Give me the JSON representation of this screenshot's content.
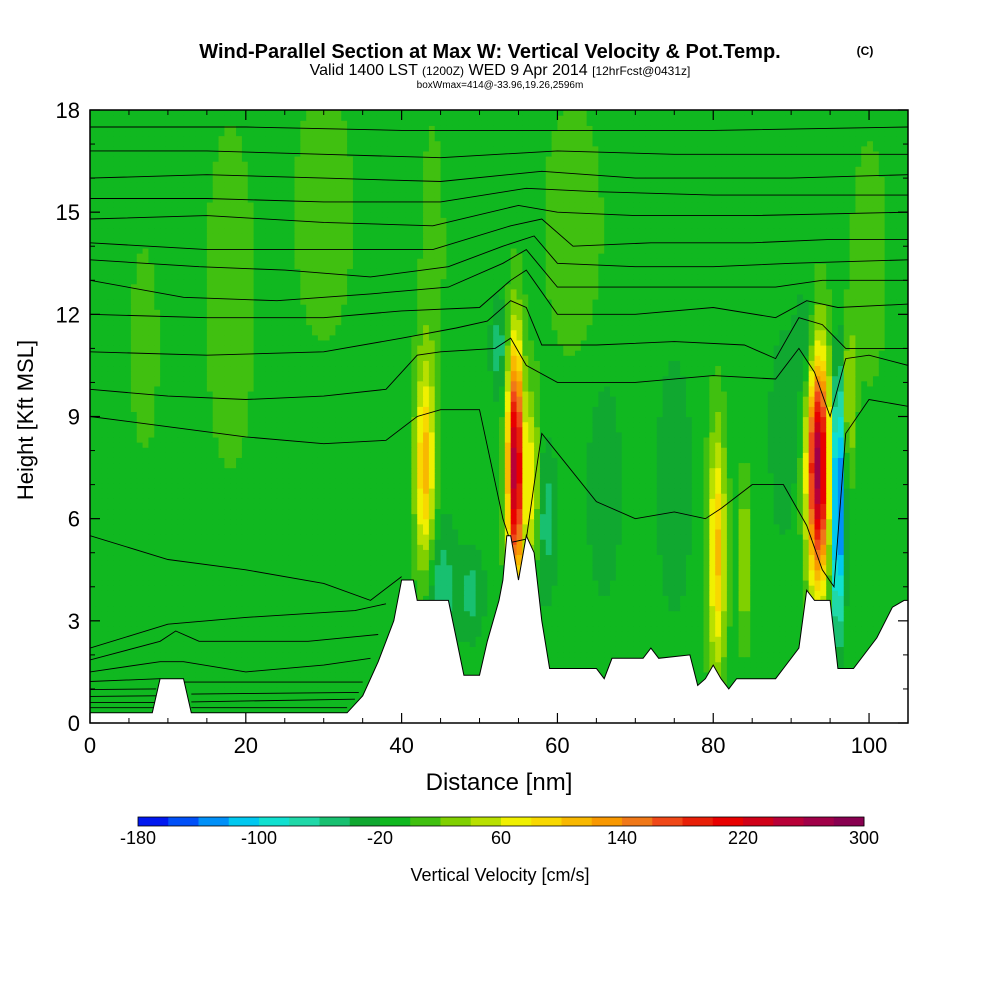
{
  "chart_data": {
    "type": "heatmap",
    "title": "Wind-Parallel Section at Max W: Vertical Velocity & Pot.Temp.",
    "title_mark": "(C)",
    "subtitle": {
      "valid": "Valid 1400 LST",
      "utc": "(1200Z)",
      "date": "WED 9 Apr 2014",
      "forecast": "[12hrFcst@0431z]"
    },
    "box_info": "boxWmax=414@-33.96,19.26,2596m",
    "xlabel": "Distance [nm]",
    "ylabel": "Height [Kft MSL]",
    "xlim": [
      0,
      105
    ],
    "ylim": [
      0,
      18
    ],
    "x_ticks": [
      0,
      20,
      40,
      60,
      80,
      100
    ],
    "y_ticks": [
      0,
      3,
      6,
      9,
      12,
      15,
      18
    ],
    "background_value": -10,
    "terrain": [
      [
        0,
        0.3
      ],
      [
        8,
        0.3
      ],
      [
        9,
        1.3
      ],
      [
        12,
        1.3
      ],
      [
        13,
        0.3
      ],
      [
        33,
        0.3
      ],
      [
        35,
        0.8
      ],
      [
        37,
        1.8
      ],
      [
        39,
        3.0
      ],
      [
        40,
        4.2
      ],
      [
        41.5,
        4.2
      ],
      [
        42,
        3.6
      ],
      [
        46,
        3.6
      ],
      [
        47,
        2.5
      ],
      [
        48,
        1.4
      ],
      [
        50,
        1.4
      ],
      [
        51,
        2.4
      ],
      [
        52.5,
        3.6
      ],
      [
        53,
        4.2
      ],
      [
        53.5,
        5.5
      ],
      [
        54,
        5.5
      ],
      [
        55,
        4.2
      ],
      [
        56,
        5.5
      ],
      [
        57,
        5.0
      ],
      [
        58,
        3.0
      ],
      [
        59,
        1.6
      ],
      [
        65,
        1.6
      ],
      [
        66,
        1.3
      ],
      [
        67,
        1.9
      ],
      [
        71,
        1.9
      ],
      [
        72,
        2.2
      ],
      [
        73,
        1.9
      ],
      [
        77,
        2.0
      ],
      [
        78,
        1.1
      ],
      [
        79,
        1.3
      ],
      [
        80,
        1.7
      ],
      [
        81,
        1.3
      ],
      [
        82,
        1.0
      ],
      [
        83,
        1.3
      ],
      [
        88,
        1.3
      ],
      [
        89,
        1.6
      ],
      [
        91,
        2.2
      ],
      [
        92,
        3.9
      ],
      [
        93,
        3.6
      ],
      [
        95,
        3.6
      ],
      [
        96,
        1.6
      ],
      [
        98,
        1.6
      ],
      [
        101,
        2.5
      ],
      [
        103,
        3.4
      ],
      [
        104.5,
        3.6
      ],
      [
        105,
        3.6
      ]
    ],
    "features": [
      {
        "x": 43.0,
        "y": 7.5,
        "sx": 0.9,
        "sy": 2.2,
        "value": 120
      },
      {
        "x": 54.6,
        "y": 7.5,
        "sx": 0.75,
        "sy": 2.5,
        "value": 270
      },
      {
        "x": 56.8,
        "y": 7.0,
        "sx": 0.6,
        "sy": 1.8,
        "value": 85
      },
      {
        "x": 80.5,
        "y": 5.0,
        "sx": 0.8,
        "sy": 2.5,
        "value": 115
      },
      {
        "x": 84.0,
        "y": 4.8,
        "sx": 0.5,
        "sy": 1.6,
        "value": 60
      },
      {
        "x": 93.5,
        "y": 7.5,
        "sx": 1.0,
        "sy": 2.4,
        "value": 280
      },
      {
        "x": 96.0,
        "y": 6.5,
        "sx": 0.55,
        "sy": 2.5,
        "value": -170
      },
      {
        "x": 52.5,
        "y": 11.0,
        "sx": 0.7,
        "sy": 1.0,
        "value": -45
      },
      {
        "x": 92.0,
        "y": 11.0,
        "sx": 1.0,
        "sy": 1.2,
        "value": -40
      },
      {
        "x": 45.0,
        "y": 4.0,
        "sx": 1.4,
        "sy": 1.4,
        "value": -45
      },
      {
        "x": 58.5,
        "y": 6.0,
        "sx": 1.0,
        "sy": 1.6,
        "value": -40
      },
      {
        "x": 49.0,
        "y": 3.8,
        "sx": 1.1,
        "sy": 0.9,
        "value": -38
      },
      {
        "x": 89.0,
        "y": 8.5,
        "sx": 1.2,
        "sy": 2.0,
        "value": -30
      },
      {
        "x": 97.5,
        "y": 9.5,
        "sx": 0.5,
        "sy": 1.5,
        "value": 60
      },
      {
        "x": 75.0,
        "y": 7.0,
        "sx": 1.5,
        "sy": 2.5,
        "value": -30
      },
      {
        "x": 66.0,
        "y": 7.0,
        "sx": 1.5,
        "sy": 2.2,
        "value": -30
      },
      {
        "x": 18.0,
        "y": 12.5,
        "sx": 2.5,
        "sy": 4.0,
        "value": 22
      },
      {
        "x": 30.0,
        "y": 15.0,
        "sx": 3.0,
        "sy": 3.0,
        "value": 22
      },
      {
        "x": 62.0,
        "y": 14.5,
        "sx": 3.0,
        "sy": 3.0,
        "value": 22
      },
      {
        "x": 100.0,
        "y": 13.5,
        "sx": 2.0,
        "sy": 3.0,
        "value": 20
      },
      {
        "x": 25.0,
        "y": 5.0,
        "sx": 3.5,
        "sy": 1.2,
        "value": 5
      },
      {
        "x": 44.0,
        "y": 14.0,
        "sx": 1.2,
        "sy": 3.0,
        "value": 20
      },
      {
        "x": 7.0,
        "y": 11.0,
        "sx": 1.5,
        "sy": 2.5,
        "value": 20
      }
    ],
    "isentropes": [
      [
        [
          0,
          0.45
        ],
        [
          8.5,
          0.45
        ]
      ],
      [
        [
          0,
          0.6
        ],
        [
          8.5,
          0.6
        ]
      ],
      [
        [
          0,
          0.78
        ],
        [
          8.5,
          0.8
        ]
      ],
      [
        [
          0,
          0.98
        ],
        [
          8.5,
          1.0
        ]
      ],
      [
        [
          0,
          1.22
        ],
        [
          9,
          1.3
        ]
      ],
      [
        [
          13,
          0.45
        ],
        [
          33,
          0.45
        ]
      ],
      [
        [
          13,
          0.62
        ],
        [
          34,
          0.7
        ]
      ],
      [
        [
          13,
          0.85
        ],
        [
          34.5,
          0.9
        ]
      ],
      [
        [
          12,
          1.2
        ],
        [
          35,
          1.2
        ]
      ],
      [
        [
          0,
          1.5
        ],
        [
          9,
          1.8
        ],
        [
          12,
          1.8
        ],
        [
          20,
          1.5
        ],
        [
          30,
          1.7
        ],
        [
          36,
          1.9
        ]
      ],
      [
        [
          0,
          1.85
        ],
        [
          9,
          2.4
        ],
        [
          11,
          2.7
        ],
        [
          14,
          2.4
        ],
        [
          28,
          2.4
        ],
        [
          37,
          2.6
        ]
      ],
      [
        [
          0,
          2.2
        ],
        [
          10,
          2.9
        ],
        [
          20,
          3.1
        ],
        [
          34,
          3.3
        ],
        [
          38,
          3.5
        ]
      ],
      [
        [
          0,
          5.5
        ],
        [
          10,
          4.8
        ],
        [
          20,
          4.5
        ],
        [
          30,
          4.1
        ],
        [
          36,
          3.6
        ],
        [
          40,
          4.3
        ]
      ],
      [
        [
          0,
          9.0
        ],
        [
          10,
          8.7
        ],
        [
          20,
          8.4
        ],
        [
          30,
          8.2
        ],
        [
          38,
          8.3
        ],
        [
          42,
          9.0
        ],
        [
          45,
          9.2
        ],
        [
          50,
          9.2
        ],
        [
          53,
          6.0
        ],
        [
          54,
          5.3
        ],
        [
          56,
          5.4
        ],
        [
          57,
          7.0
        ],
        [
          58,
          8.5
        ],
        [
          65,
          6.5
        ],
        [
          70,
          6.0
        ],
        [
          75,
          6.2
        ],
        [
          79,
          6.0
        ],
        [
          81,
          6.3
        ],
        [
          85,
          7.0
        ],
        [
          89,
          7.0
        ],
        [
          92,
          5.8
        ],
        [
          94,
          4.5
        ],
        [
          95.5,
          4.0
        ],
        [
          96,
          5.5
        ],
        [
          97,
          8.5
        ],
        [
          100,
          9.5
        ],
        [
          105,
          9.3
        ]
      ],
      [
        [
          0,
          9.8
        ],
        [
          10,
          9.6
        ],
        [
          20,
          9.5
        ],
        [
          30,
          9.6
        ],
        [
          38,
          9.8
        ],
        [
          42,
          10.8
        ],
        [
          45,
          10.9
        ],
        [
          52,
          11.0
        ],
        [
          54,
          11.3
        ],
        [
          56,
          10.5
        ],
        [
          60,
          10.0
        ],
        [
          70,
          10.0
        ],
        [
          80,
          10.2
        ],
        [
          88,
          10.1
        ],
        [
          91,
          11.0
        ],
        [
          93,
          10.3
        ],
        [
          95,
          9.0
        ],
        [
          97,
          10.7
        ],
        [
          100,
          10.8
        ],
        [
          105,
          10.5
        ]
      ],
      [
        [
          0,
          10.9
        ],
        [
          15,
          10.8
        ],
        [
          30,
          10.9
        ],
        [
          40,
          11.3
        ],
        [
          47,
          11.6
        ],
        [
          51,
          11.8
        ],
        [
          54,
          12.4
        ],
        [
          56,
          12.2
        ],
        [
          58,
          11.1
        ],
        [
          65,
          11.1
        ],
        [
          75,
          11.2
        ],
        [
          84,
          11.1
        ],
        [
          88,
          10.7
        ],
        [
          91,
          11.9
        ],
        [
          94,
          11.7
        ],
        [
          97,
          11.0
        ],
        [
          105,
          11.0
        ]
      ],
      [
        [
          0,
          12.0
        ],
        [
          15,
          11.9
        ],
        [
          30,
          11.9
        ],
        [
          40,
          12.1
        ],
        [
          50,
          12.2
        ],
        [
          54,
          13.0
        ],
        [
          56,
          13.3
        ],
        [
          60,
          12.0
        ],
        [
          70,
          12.0
        ],
        [
          80,
          12.2
        ],
        [
          88,
          11.9
        ],
        [
          92,
          12.4
        ],
        [
          96,
          12.2
        ],
        [
          105,
          12.3
        ]
      ],
      [
        [
          0,
          13.0
        ],
        [
          12,
          12.5
        ],
        [
          24,
          12.4
        ],
        [
          36,
          12.6
        ],
        [
          46,
          12.8
        ],
        [
          53,
          13.5
        ],
        [
          56,
          13.9
        ],
        [
          60,
          12.8
        ],
        [
          70,
          12.8
        ],
        [
          80,
          12.8
        ],
        [
          88,
          12.8
        ],
        [
          94,
          13.0
        ],
        [
          105,
          13.0
        ]
      ],
      [
        [
          0,
          13.6
        ],
        [
          14,
          13.4
        ],
        [
          25,
          13.3
        ],
        [
          36,
          13.1
        ],
        [
          46,
          13.4
        ],
        [
          53,
          14.0
        ],
        [
          57,
          14.3
        ],
        [
          60,
          13.5
        ],
        [
          70,
          13.4
        ],
        [
          80,
          13.4
        ],
        [
          90,
          13.5
        ],
        [
          105,
          13.6
        ]
      ],
      [
        [
          0,
          14.1
        ],
        [
          15,
          13.9
        ],
        [
          30,
          13.9
        ],
        [
          44,
          13.9
        ],
        [
          54,
          14.6
        ],
        [
          58,
          14.8
        ],
        [
          62,
          14.0
        ],
        [
          72,
          14.1
        ],
        [
          85,
          14.1
        ],
        [
          95,
          14.2
        ],
        [
          105,
          14.2
        ]
      ],
      [
        [
          0,
          14.8
        ],
        [
          15,
          14.9
        ],
        [
          30,
          14.7
        ],
        [
          44,
          14.6
        ],
        [
          55,
          15.2
        ],
        [
          60,
          15.0
        ],
        [
          70,
          14.9
        ],
        [
          85,
          14.9
        ],
        [
          105,
          15.0
        ]
      ],
      [
        [
          0,
          15.4
        ],
        [
          15,
          15.4
        ],
        [
          30,
          15.3
        ],
        [
          45,
          15.3
        ],
        [
          56,
          15.7
        ],
        [
          65,
          15.6
        ],
        [
          80,
          15.5
        ],
        [
          105,
          15.5
        ]
      ],
      [
        [
          0,
          16.0
        ],
        [
          15,
          16.1
        ],
        [
          30,
          16.0
        ],
        [
          45,
          15.9
        ],
        [
          58,
          16.2
        ],
        [
          70,
          16.0
        ],
        [
          90,
          16.0
        ],
        [
          105,
          16.1
        ]
      ],
      [
        [
          0,
          16.8
        ],
        [
          15,
          16.8
        ],
        [
          30,
          16.7
        ],
        [
          45,
          16.6
        ],
        [
          60,
          16.8
        ],
        [
          75,
          16.7
        ],
        [
          105,
          16.7
        ]
      ],
      [
        [
          0,
          17.5
        ],
        [
          20,
          17.5
        ],
        [
          40,
          17.4
        ],
        [
          60,
          17.4
        ],
        [
          80,
          17.4
        ],
        [
          105,
          17.5
        ]
      ]
    ],
    "colorbar": {
      "label": "Vertical Velocity [cm/s]",
      "min": -180,
      "max": 300,
      "step": 20,
      "tick_labels": [
        "-180",
        "-100",
        "-20",
        "60",
        "140",
        "220",
        "300"
      ],
      "colors": [
        "#0018f0",
        "#0050f8",
        "#0090f8",
        "#00c8f0",
        "#10e0d0",
        "#20d8a8",
        "#18c070",
        "#10a830",
        "#10b820",
        "#40c010",
        "#80d000",
        "#b8e000",
        "#f0f000",
        "#f8d800",
        "#f8b800",
        "#f89800",
        "#f07818",
        "#f04818",
        "#e82008",
        "#e80000",
        "#d00018",
        "#b80038",
        "#a00048",
        "#880050"
      ]
    }
  }
}
